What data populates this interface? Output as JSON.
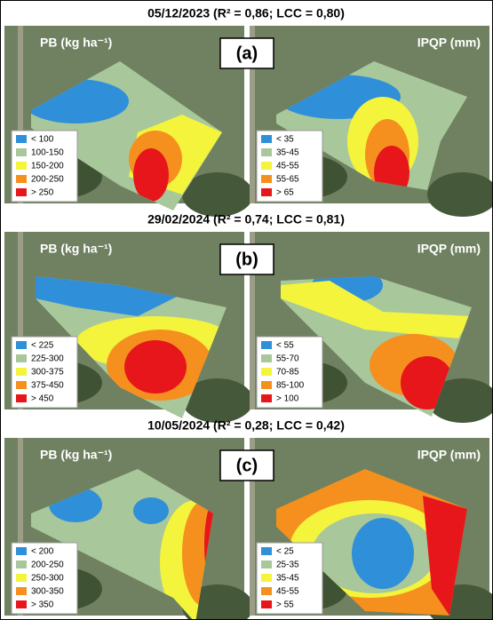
{
  "rows": [
    {
      "title": "05/12/2023 (R² = 0,86; LCC = 0,80)",
      "label": "(a)",
      "maps": [
        {
          "label": "PB (kg ha⁻¹)",
          "legend": [
            "< 100",
            "100-150",
            "150-200",
            "200-250",
            "> 250"
          ]
        },
        {
          "label": "IPQP (mm)",
          "legend": [
            "< 35",
            "35-45",
            "45-55",
            "55-65",
            "> 65"
          ]
        }
      ]
    },
    {
      "title": "29/02/2024 (R² = 0,74; LCC = 0,81)",
      "label": "(b)",
      "maps": [
        {
          "label": "PB (kg ha⁻¹)",
          "legend": [
            "< 225",
            "225-300",
            "300-375",
            "375-450",
            "> 450"
          ]
        },
        {
          "label": "IPQP (mm)",
          "legend": [
            "< 55",
            "55-70",
            "70-85",
            "85-100",
            "> 100"
          ]
        }
      ]
    },
    {
      "title": "10/05/2024 (R² = 0,28; LCC = 0,42)",
      "label": "(c)",
      "maps": [
        {
          "label": "PB (kg ha⁻¹)",
          "legend": [
            "< 200",
            "200-250",
            "250-300",
            "300-350",
            "> 350"
          ]
        },
        {
          "label": "IPQP (mm)",
          "legend": [
            "< 25",
            "25-35",
            "35-45",
            "45-55",
            "> 55"
          ]
        }
      ]
    }
  ],
  "legend_colors": [
    "#2f8fd8",
    "#a8c79b",
    "#f4f43c",
    "#f5901f",
    "#e6161b"
  ]
}
